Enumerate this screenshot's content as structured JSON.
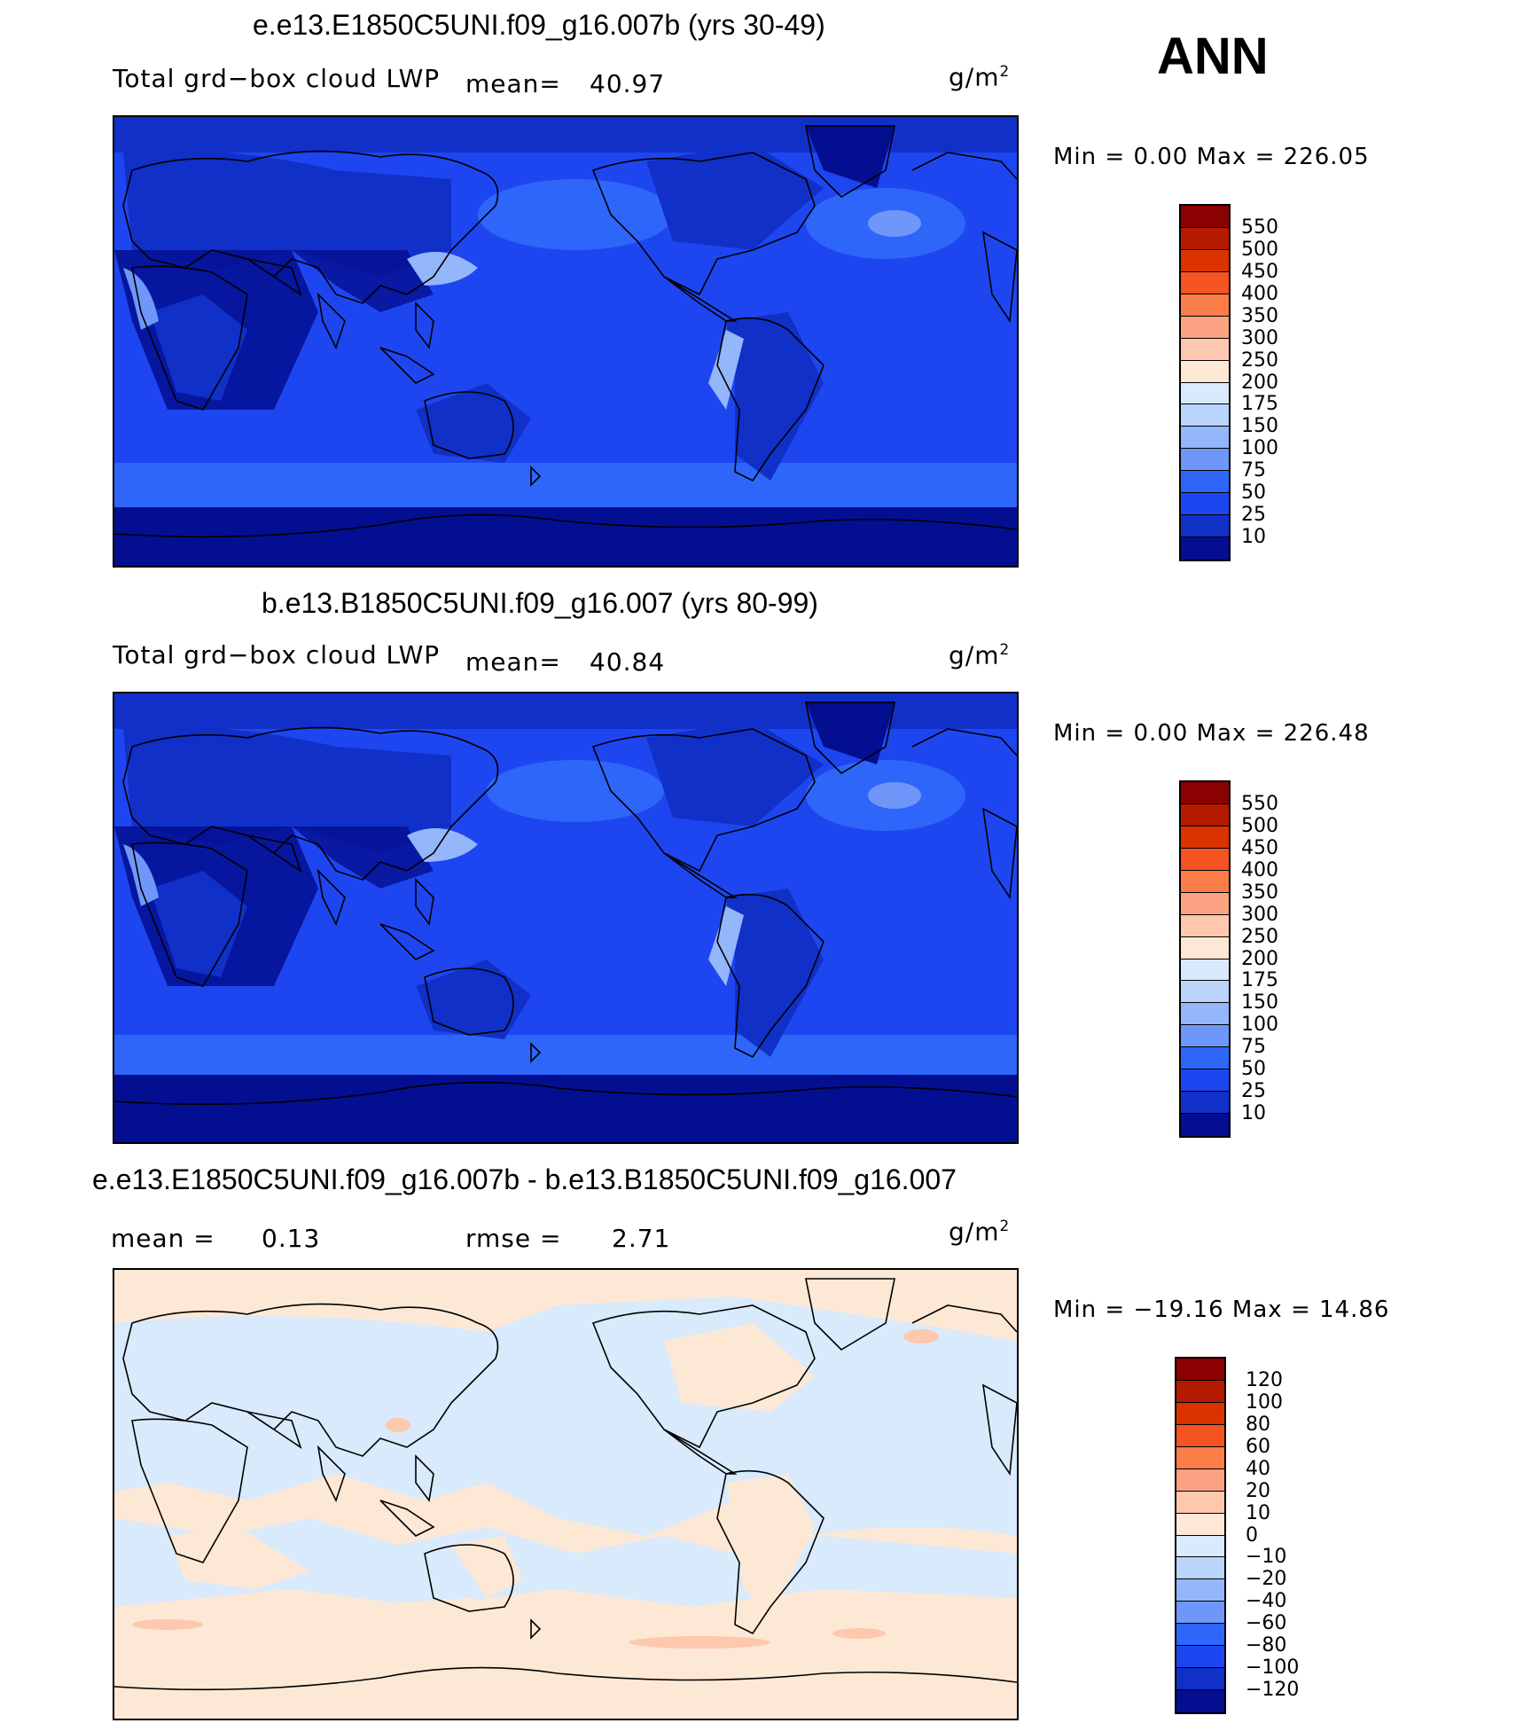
{
  "season": "ANN",
  "panels": [
    {
      "id": "test",
      "title": "e.e13.E1850C5UNI.f09_g16.007b (yrs 30-49)",
      "variable": "Total grd−box cloud LWP",
      "mean_label": "mean=",
      "mean_value": "40.97",
      "units": "g/m",
      "units_sup": "2",
      "minmax": "Min =     0.00 Max  =  226.05",
      "colorbar": {
        "colors": [
          "#8b0000",
          "#b31a00",
          "#db3300",
          "#f55322",
          "#fa7d4a",
          "#fca283",
          "#fdc8ad",
          "#fde8d6",
          "#d8eafc",
          "#bad4fc",
          "#94b6fb",
          "#6f97fa",
          "#2f66fa",
          "#1e46f0",
          "#1030c8",
          "#040e91"
        ],
        "labels": [
          "550",
          "500",
          "450",
          "400",
          "350",
          "300",
          "250",
          "200",
          "175",
          "150",
          "100",
          "75",
          "50",
          "25",
          "10"
        ]
      }
    },
    {
      "id": "control",
      "title": "b.e13.B1850C5UNI.f09_g16.007 (yrs 80-99)",
      "variable": "Total grd−box cloud LWP",
      "mean_label": "mean=",
      "mean_value": "40.84",
      "units": "g/m",
      "units_sup": "2",
      "minmax": "Min =     0.00 Max  =  226.48",
      "colorbar": {
        "colors": [
          "#8b0000",
          "#b31a00",
          "#db3300",
          "#f55322",
          "#fa7d4a",
          "#fca283",
          "#fdc8ad",
          "#fde8d6",
          "#d8eafc",
          "#bad4fc",
          "#94b6fb",
          "#6f97fa",
          "#2f66fa",
          "#1e46f0",
          "#1030c8",
          "#040e91"
        ],
        "labels": [
          "550",
          "500",
          "450",
          "400",
          "350",
          "300",
          "250",
          "200",
          "175",
          "150",
          "100",
          "75",
          "50",
          "25",
          "10"
        ]
      }
    },
    {
      "id": "diff",
      "title": "e.e13.E1850C5UNI.f09_g16.007b - b.e13.B1850C5UNI.f09_g16.007",
      "mean_label": "mean =",
      "mean_value": "0.13",
      "rmse_label": "rmse =",
      "rmse_value": "2.71",
      "units": "g/m",
      "units_sup": "2",
      "minmax": "Min = −19.16 Max  =   14.86",
      "colorbar": {
        "colors": [
          "#8b0000",
          "#b31a00",
          "#db3300",
          "#f55322",
          "#fa7d4a",
          "#fca283",
          "#fdc8ad",
          "#fde8d6",
          "#d8eafc",
          "#bad4fc",
          "#94b6fb",
          "#6f97fa",
          "#2f66fa",
          "#1e46f0",
          "#1030c8",
          "#040e91"
        ],
        "labels": [
          "120",
          "100",
          "80",
          "60",
          "40",
          "20",
          "10",
          "0",
          "−10",
          "−20",
          "−40",
          "−60",
          "−80",
          "−100",
          "−120"
        ]
      }
    }
  ]
}
